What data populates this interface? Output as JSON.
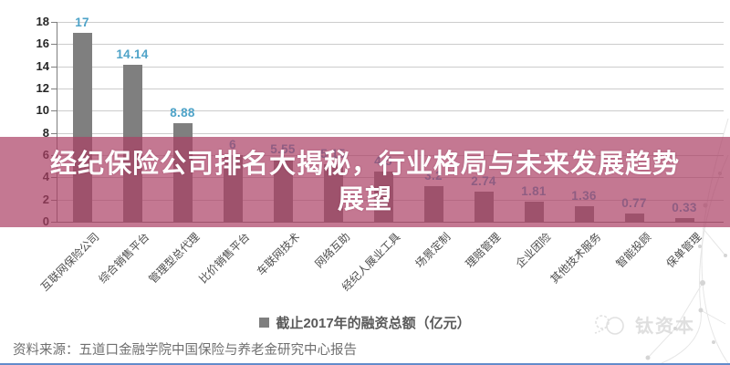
{
  "title": {
    "lines": [
      "经纪保险公司排名大揭秘，行业格局与未来发展趋势",
      "展望"
    ]
  },
  "overlay": {
    "band_color": "rgba(171,62,100,0.70)"
  },
  "chart_data": {
    "type": "bar",
    "title": "",
    "xlabel": "",
    "ylabel": "",
    "categories": [
      "互联网保险公司",
      "综合销售平台",
      "管理型总代理",
      "比价销售平台",
      "车联网技术",
      "网络互助",
      "经纪人展业工具",
      "场景定制",
      "理赔管理",
      "企业团险",
      "其他技术服务",
      "智能投顾",
      "保单管理"
    ],
    "values": [
      17,
      14.14,
      8.88,
      6,
      5.55,
      5.15,
      4.5,
      3.2,
      2.74,
      1.81,
      1.36,
      0.77,
      0.33
    ],
    "value_labels": [
      "17",
      "14.14",
      "8.88",
      "6",
      "5.55",
      "5.15",
      "4.5",
      "3.2",
      "2.74",
      "1.81",
      "1.36",
      "0.77",
      "0.33"
    ],
    "legend": "截止2017年的融资总额（亿元）",
    "legend_position": "bottom",
    "ylim": [
      0,
      18
    ],
    "ytick_step": 2,
    "grid": true,
    "colors": {
      "bar": "#7f7f7f",
      "value_label": "#4ea3c8",
      "axis": "#7f7f7f",
      "gridline": "#cccccc",
      "tick_label": "#262626"
    }
  },
  "footer": {
    "source": "资料来源：五道口金融学院中国保险与养老金研究中心报告",
    "divider_color": "#4877c2"
  },
  "watermark": {
    "label": "钛资本"
  }
}
